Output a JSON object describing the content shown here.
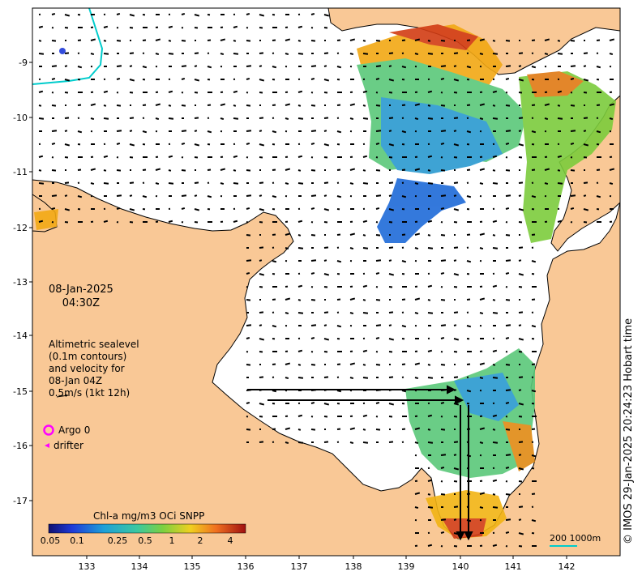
{
  "date_line1": "08-Jan-2025",
  "date_line2": "04:30Z",
  "info_lines": [
    "Altimetric sealevel",
    "(0.1m contours)",
    "and velocity for",
    "08-Jan 04Z",
    "0.5m/s (1kt 12h)"
  ],
  "legend": {
    "argo": "Argo 0",
    "drifter": "drifter"
  },
  "colorbar": {
    "title": "Chl-a mg/m3 OCi SNPP",
    "ticks": [
      "0.05",
      "0.1",
      "0.25",
      "0.5",
      "1",
      "2",
      "4"
    ]
  },
  "credit": "© IMOS 29-Jan-2025 20:24:23 Hobart time",
  "scale_label": "200  1000m",
  "axes": {
    "lon_ticks": [
      "133",
      "134",
      "135",
      "136",
      "137",
      "138",
      "139",
      "140",
      "141",
      "142"
    ],
    "lat_ticks": [
      "-9",
      "-10",
      "-11",
      "-12",
      "-13",
      "-14",
      "-15",
      "-16",
      "-17"
    ]
  },
  "colors": {
    "land": "#f9c896",
    "ocean": "#ffffff",
    "coast": "#000000",
    "argo": "#ff00ff",
    "shelf_contour": "#00cccc"
  }
}
